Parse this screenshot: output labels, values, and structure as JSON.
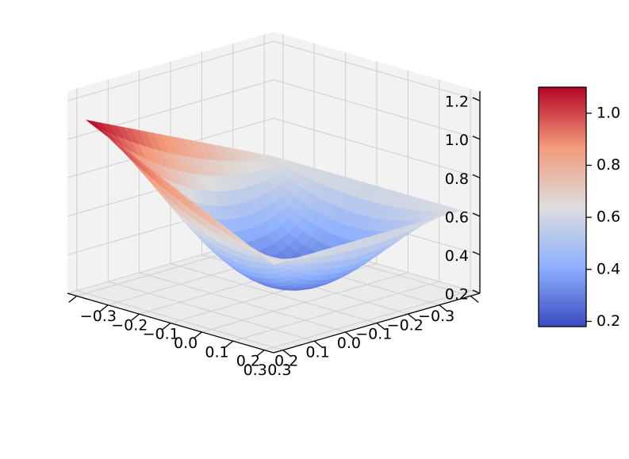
{
  "chart_data": {
    "type": "surface3d",
    "title": "",
    "xlabel": "",
    "ylabel": "",
    "zlabel": "",
    "x_ticks": [
      -0.3,
      -0.2,
      -0.1,
      0.0,
      0.1,
      0.2,
      0.3
    ],
    "x_tick_labels": [
      "−0.3",
      "−0.2",
      "−0.1",
      "0.0",
      "0.1",
      "0.2",
      "0.3"
    ],
    "y_ticks": [
      -0.3,
      -0.2,
      -0.1,
      0.0,
      0.1,
      0.2,
      0.3
    ],
    "y_tick_labels": [
      "−0.3",
      "−0.2",
      "−0.1",
      "0.0",
      "0.1",
      "0.2",
      "0.3"
    ],
    "z_ticks": [
      0.2,
      0.4,
      0.6,
      0.8,
      1.0,
      1.2
    ],
    "z_tick_labels": [
      "0.2",
      "0.4",
      "0.6",
      "0.8",
      "1.0",
      "1.2"
    ],
    "xlim": [
      -0.33,
      0.33
    ],
    "ylim": [
      -0.33,
      0.33
    ],
    "zlim": [
      0.2,
      1.25
    ],
    "surface": {
      "grid_size": 25,
      "x_range": [
        -0.3,
        0.3
      ],
      "y_range": [
        -0.3,
        0.3
      ],
      "corner_values": {
        "x_min_y_min": 0.63,
        "x_max_y_min": 1.1,
        "x_min_y_max": 0.63,
        "x_max_y_max": 0.63
      },
      "center_value": 0.25
    },
    "colormap": "coolwarm",
    "colorbar": {
      "range": [
        0.18,
        1.1
      ],
      "ticks": [
        0.2,
        0.4,
        0.6,
        0.8,
        1.0
      ],
      "tick_labels": [
        "0.2",
        "0.4",
        "0.6",
        "0.8",
        "1.0"
      ],
      "colors": [
        "#3b4cc0",
        "#8db0fe",
        "#dddddd",
        "#f49a7b",
        "#b40426"
      ]
    },
    "view": {
      "elevation_deg": 30,
      "azimuth_deg": -135
    },
    "pane_color": "#f2f2f2",
    "grid": true
  }
}
